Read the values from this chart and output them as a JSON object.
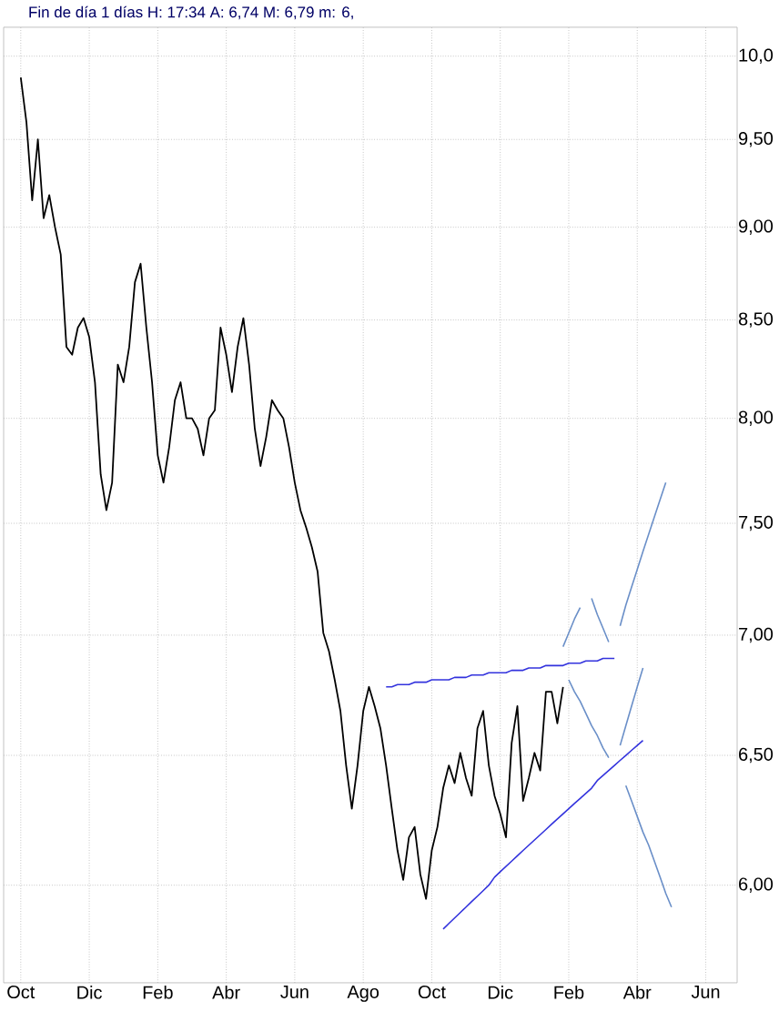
{
  "chart_data": {
    "type": "line",
    "title": "Fin de día 1 días H: 17:34 A: 6,74 M: 6,79 m: 6,",
    "log": "y",
    "grid": true,
    "line_style": "solid",
    "categories": [
      "Oct",
      null,
      null,
      null,
      null,
      null,
      null,
      null,
      null,
      null,
      null,
      null,
      "Dic",
      null,
      null,
      null,
      null,
      null,
      null,
      null,
      null,
      null,
      null,
      null,
      "Feb",
      null,
      null,
      null,
      null,
      null,
      null,
      null,
      null,
      null,
      null,
      null,
      "Abr",
      null,
      null,
      null,
      null,
      null,
      null,
      null,
      null,
      null,
      null,
      null,
      "Jun",
      null,
      null,
      null,
      null,
      null,
      null,
      null,
      null,
      null,
      null,
      null,
      "Ago",
      null,
      null,
      null,
      null,
      null,
      null,
      null,
      null,
      null,
      null,
      null,
      "Oct",
      null,
      null,
      null,
      null,
      null,
      null,
      null,
      null,
      null,
      null,
      null,
      "Dic",
      null,
      null,
      null,
      null,
      null,
      null,
      null,
      null,
      null,
      null,
      null,
      "Feb",
      null,
      null,
      null,
      null,
      null,
      null,
      null,
      null,
      null,
      null,
      null,
      "Abr",
      null,
      null,
      null,
      null,
      null,
      null,
      null,
      null,
      null,
      null,
      null,
      "Jun",
      null,
      null,
      null,
      null,
      null
    ],
    "ylim": [
      5.65,
      10.18
    ],
    "yticks": [
      {
        "value": 6,
        "label": "6,00"
      },
      {
        "value": 6.5,
        "label": "6,50"
      },
      {
        "value": 7,
        "label": "7,00"
      },
      {
        "value": 7.5,
        "label": "7,50"
      },
      {
        "value": 8,
        "label": "8,00"
      },
      {
        "value": 8.5,
        "label": "8,50"
      },
      {
        "value": 9,
        "label": "9,00"
      },
      {
        "value": 9.5,
        "label": "9,50"
      },
      {
        "value": 10,
        "label": "10,0"
      }
    ],
    "series": [
      {
        "color": "#000000",
        "values": [
          9.87,
          9.6,
          9.15,
          9.5,
          9.05,
          9.18,
          9.0,
          8.85,
          8.36,
          8.32,
          8.46,
          8.51,
          8.41,
          8.18,
          7.73,
          7.56,
          7.69,
          8.27,
          8.18,
          8.36,
          8.7,
          8.8,
          8.46,
          8.18,
          7.82,
          7.69,
          7.86,
          8.09,
          8.18,
          8.0,
          8.0,
          7.95,
          7.82,
          8.0,
          8.04,
          8.46,
          8.32,
          8.13,
          8.36,
          8.51,
          8.27,
          7.95,
          7.77,
          7.91,
          8.09,
          8.04,
          8.0,
          7.86,
          7.69,
          7.56,
          7.48,
          7.39,
          7.28,
          7.01,
          6.93,
          6.81,
          6.68,
          6.46,
          6.29,
          6.46,
          6.68,
          6.78,
          6.7,
          6.61,
          6.46,
          6.29,
          6.13,
          6.02,
          6.18,
          6.22,
          6.04,
          5.95,
          6.13,
          6.22,
          6.37,
          6.46,
          6.39,
          6.51,
          6.41,
          6.34,
          6.61,
          6.68,
          6.46,
          6.34,
          6.27,
          6.18,
          6.55,
          6.7,
          6.32,
          6.41,
          6.51,
          6.44,
          6.76,
          6.76,
          6.63,
          6.78,
          null,
          null,
          null,
          null,
          null,
          null,
          null,
          null,
          null,
          null,
          null,
          null,
          null,
          null,
          null,
          null,
          null,
          null,
          null,
          null,
          null,
          null,
          null,
          null,
          null,
          null,
          null,
          null,
          null,
          null
        ]
      },
      {
        "color": "#3333dd",
        "values": [
          null,
          null,
          null,
          null,
          null,
          null,
          null,
          null,
          null,
          null,
          null,
          null,
          null,
          null,
          null,
          null,
          null,
          null,
          null,
          null,
          null,
          null,
          null,
          null,
          null,
          null,
          null,
          null,
          null,
          null,
          null,
          null,
          null,
          null,
          null,
          null,
          null,
          null,
          null,
          null,
          null,
          null,
          null,
          null,
          null,
          null,
          null,
          null,
          null,
          null,
          null,
          null,
          null,
          null,
          null,
          null,
          null,
          null,
          null,
          null,
          null,
          null,
          null,
          null,
          6.78,
          6.78,
          6.79,
          6.79,
          6.79,
          6.8,
          6.8,
          6.8,
          6.81,
          6.81,
          6.81,
          6.81,
          6.82,
          6.82,
          6.82,
          6.83,
          6.83,
          6.83,
          6.84,
          6.84,
          6.84,
          6.84,
          6.85,
          6.85,
          6.85,
          6.86,
          6.86,
          6.86,
          6.87,
          6.87,
          6.87,
          6.87,
          6.88,
          6.88,
          6.88,
          6.89,
          6.89,
          6.89,
          6.9,
          6.9,
          6.9,
          null,
          null,
          null,
          null,
          null,
          null,
          null,
          null,
          null,
          null,
          null,
          null,
          null,
          null,
          null,
          null,
          null,
          null,
          null,
          null,
          null
        ]
      },
      {
        "color": "#3333dd",
        "values": [
          null,
          null,
          null,
          null,
          null,
          null,
          null,
          null,
          null,
          null,
          null,
          null,
          null,
          null,
          null,
          null,
          null,
          null,
          null,
          null,
          null,
          null,
          null,
          null,
          null,
          null,
          null,
          null,
          null,
          null,
          null,
          null,
          null,
          null,
          null,
          null,
          null,
          null,
          null,
          null,
          null,
          null,
          null,
          null,
          null,
          null,
          null,
          null,
          null,
          null,
          null,
          null,
          null,
          null,
          null,
          null,
          null,
          null,
          null,
          null,
          null,
          null,
          null,
          null,
          null,
          null,
          null,
          null,
          null,
          null,
          null,
          null,
          null,
          null,
          5.84,
          5.86,
          5.88,
          5.9,
          5.92,
          5.94,
          5.96,
          5.98,
          6.0,
          6.03,
          6.05,
          6.07,
          6.09,
          6.11,
          6.13,
          6.15,
          6.17,
          6.19,
          6.21,
          6.23,
          6.25,
          6.27,
          6.29,
          6.31,
          6.33,
          6.35,
          6.37,
          6.4,
          6.42,
          6.44,
          6.46,
          6.48,
          6.5,
          6.52,
          6.54,
          6.56,
          null,
          null,
          null,
          null,
          null,
          null,
          null,
          null,
          null,
          null,
          null,
          null,
          null,
          null,
          null,
          null
        ]
      },
      {
        "color": "#6a8fc8",
        "values": [
          null,
          null,
          null,
          null,
          null,
          null,
          null,
          null,
          null,
          null,
          null,
          null,
          null,
          null,
          null,
          null,
          null,
          null,
          null,
          null,
          null,
          null,
          null,
          null,
          null,
          null,
          null,
          null,
          null,
          null,
          null,
          null,
          null,
          null,
          null,
          null,
          null,
          null,
          null,
          null,
          null,
          null,
          null,
          null,
          null,
          null,
          null,
          null,
          null,
          null,
          null,
          null,
          null,
          null,
          null,
          null,
          null,
          null,
          null,
          null,
          null,
          null,
          null,
          null,
          null,
          null,
          null,
          null,
          null,
          null,
          null,
          null,
          null,
          null,
          null,
          null,
          null,
          null,
          null,
          null,
          null,
          null,
          null,
          null,
          null,
          null,
          null,
          null,
          null,
          null,
          null,
          null,
          null,
          null,
          null,
          6.95,
          7.01,
          7.07,
          7.12,
          null,
          null,
          null,
          null,
          null,
          null,
          null,
          null,
          null,
          null,
          null,
          null,
          null,
          null,
          null,
          null,
          null,
          null,
          null,
          null,
          null,
          null,
          null,
          null,
          null,
          null,
          null
        ]
      },
      {
        "color": "#6a8fc8",
        "values": [
          null,
          null,
          null,
          null,
          null,
          null,
          null,
          null,
          null,
          null,
          null,
          null,
          null,
          null,
          null,
          null,
          null,
          null,
          null,
          null,
          null,
          null,
          null,
          null,
          null,
          null,
          null,
          null,
          null,
          null,
          null,
          null,
          null,
          null,
          null,
          null,
          null,
          null,
          null,
          null,
          null,
          null,
          null,
          null,
          null,
          null,
          null,
          null,
          null,
          null,
          null,
          null,
          null,
          null,
          null,
          null,
          null,
          null,
          null,
          null,
          null,
          null,
          null,
          null,
          null,
          null,
          null,
          null,
          null,
          null,
          null,
          null,
          null,
          null,
          null,
          null,
          null,
          null,
          null,
          null,
          null,
          null,
          null,
          null,
          null,
          null,
          null,
          null,
          null,
          null,
          null,
          null,
          null,
          null,
          null,
          null,
          null,
          null,
          null,
          null,
          7.16,
          7.09,
          7.03,
          6.97,
          null,
          null,
          null,
          null,
          null,
          null,
          null,
          null,
          null,
          null,
          null,
          null,
          null,
          null,
          null,
          null,
          null,
          null,
          null,
          null,
          null,
          null
        ]
      },
      {
        "color": "#6a8fc8",
        "values": [
          null,
          null,
          null,
          null,
          null,
          null,
          null,
          null,
          null,
          null,
          null,
          null,
          null,
          null,
          null,
          null,
          null,
          null,
          null,
          null,
          null,
          null,
          null,
          null,
          null,
          null,
          null,
          null,
          null,
          null,
          null,
          null,
          null,
          null,
          null,
          null,
          null,
          null,
          null,
          null,
          null,
          null,
          null,
          null,
          null,
          null,
          null,
          null,
          null,
          null,
          null,
          null,
          null,
          null,
          null,
          null,
          null,
          null,
          null,
          null,
          null,
          null,
          null,
          null,
          null,
          null,
          null,
          null,
          null,
          null,
          null,
          null,
          null,
          null,
          null,
          null,
          null,
          null,
          null,
          null,
          null,
          null,
          null,
          null,
          null,
          null,
          null,
          null,
          null,
          null,
          null,
          null,
          null,
          null,
          null,
          null,
          null,
          null,
          null,
          null,
          null,
          null,
          null,
          null,
          null,
          7.04,
          7.13,
          7.21,
          7.29,
          7.37,
          7.45,
          7.53,
          7.61,
          7.69,
          null,
          null,
          null,
          null,
          null,
          null,
          null,
          null,
          null,
          null,
          null,
          null
        ]
      },
      {
        "color": "#6a8fc8",
        "values": [
          null,
          null,
          null,
          null,
          null,
          null,
          null,
          null,
          null,
          null,
          null,
          null,
          null,
          null,
          null,
          null,
          null,
          null,
          null,
          null,
          null,
          null,
          null,
          null,
          null,
          null,
          null,
          null,
          null,
          null,
          null,
          null,
          null,
          null,
          null,
          null,
          null,
          null,
          null,
          null,
          null,
          null,
          null,
          null,
          null,
          null,
          null,
          null,
          null,
          null,
          null,
          null,
          null,
          null,
          null,
          null,
          null,
          null,
          null,
          null,
          null,
          null,
          null,
          null,
          null,
          null,
          null,
          null,
          null,
          null,
          null,
          null,
          null,
          null,
          null,
          null,
          null,
          null,
          null,
          null,
          null,
          null,
          null,
          null,
          null,
          null,
          null,
          null,
          null,
          null,
          null,
          null,
          null,
          null,
          null,
          null,
          6.81,
          6.76,
          6.72,
          6.67,
          6.62,
          6.58,
          6.53,
          6.49,
          null,
          null,
          null,
          null,
          null,
          null,
          null,
          null,
          null,
          null,
          null,
          null,
          null,
          null,
          null,
          null,
          null,
          null,
          null,
          null,
          null,
          null
        ]
      },
      {
        "color": "#6a8fc8",
        "values": [
          null,
          null,
          null,
          null,
          null,
          null,
          null,
          null,
          null,
          null,
          null,
          null,
          null,
          null,
          null,
          null,
          null,
          null,
          null,
          null,
          null,
          null,
          null,
          null,
          null,
          null,
          null,
          null,
          null,
          null,
          null,
          null,
          null,
          null,
          null,
          null,
          null,
          null,
          null,
          null,
          null,
          null,
          null,
          null,
          null,
          null,
          null,
          null,
          null,
          null,
          null,
          null,
          null,
          null,
          null,
          null,
          null,
          null,
          null,
          null,
          null,
          null,
          null,
          null,
          null,
          null,
          null,
          null,
          null,
          null,
          null,
          null,
          null,
          null,
          null,
          null,
          null,
          null,
          null,
          null,
          null,
          null,
          null,
          null,
          null,
          null,
          null,
          null,
          null,
          null,
          null,
          null,
          null,
          null,
          null,
          null,
          null,
          null,
          null,
          null,
          null,
          null,
          null,
          null,
          null,
          6.54,
          6.62,
          6.7,
          6.78,
          6.86,
          null,
          null,
          null,
          null,
          null,
          null,
          null,
          null,
          null,
          null,
          null,
          null,
          null,
          null,
          null,
          null
        ]
      },
      {
        "color": "#6a8fc8",
        "values": [
          null,
          null,
          null,
          null,
          null,
          null,
          null,
          null,
          null,
          null,
          null,
          null,
          null,
          null,
          null,
          null,
          null,
          null,
          null,
          null,
          null,
          null,
          null,
          null,
          null,
          null,
          null,
          null,
          null,
          null,
          null,
          null,
          null,
          null,
          null,
          null,
          null,
          null,
          null,
          null,
          null,
          null,
          null,
          null,
          null,
          null,
          null,
          null,
          null,
          null,
          null,
          null,
          null,
          null,
          null,
          null,
          null,
          null,
          null,
          null,
          null,
          null,
          null,
          null,
          null,
          null,
          null,
          null,
          null,
          null,
          null,
          null,
          null,
          null,
          null,
          null,
          null,
          null,
          null,
          null,
          null,
          null,
          null,
          null,
          null,
          null,
          null,
          null,
          null,
          null,
          null,
          null,
          null,
          null,
          null,
          null,
          null,
          null,
          null,
          null,
          null,
          null,
          null,
          null,
          null,
          null,
          6.38,
          6.32,
          6.26,
          6.2,
          6.15,
          6.09,
          6.03,
          5.97,
          5.92,
          null,
          null,
          null,
          null,
          null,
          null,
          null,
          null,
          null,
          null,
          null
        ]
      }
    ]
  }
}
